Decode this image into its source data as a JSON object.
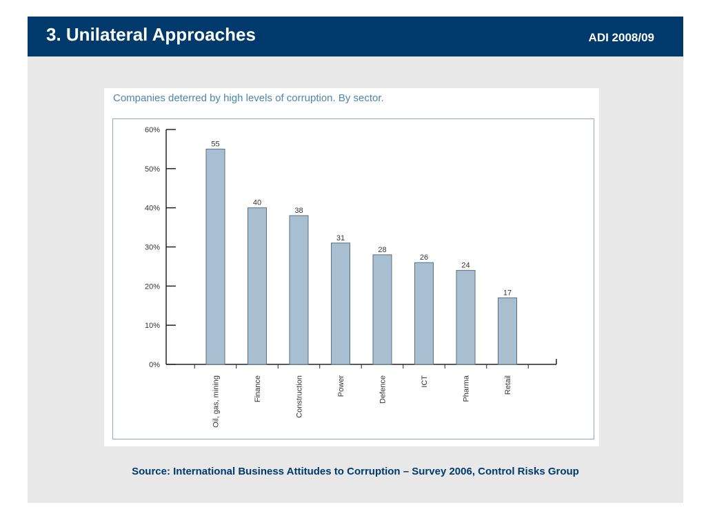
{
  "header": {
    "title": "3. Unilateral Approaches",
    "tag": "ADI 2008/09"
  },
  "source": "Source: International Business Attitudes to Corruption – Survey 2006, Control Risks Group",
  "colors": {
    "header_bg": "#003a6c",
    "bar_fill": "#a8bfd1",
    "chart_title": "#4a86b0"
  },
  "chart_data": {
    "type": "bar",
    "title": "Companies deterred by high levels of corruption. By sector.",
    "categories": [
      "Oil, gas, mining",
      "Finance",
      "Construction",
      "Power",
      "Defence",
      "ICT",
      "Pharma",
      "Retail"
    ],
    "values": [
      55,
      40,
      38,
      31,
      28,
      26,
      24,
      17
    ],
    "ylim": [
      0,
      60
    ],
    "yticks": [
      "0%",
      "10%",
      "20%",
      "30%",
      "40%",
      "50%",
      "60%"
    ],
    "xlabel": "",
    "ylabel": "",
    "grid": false,
    "legend": "none"
  }
}
